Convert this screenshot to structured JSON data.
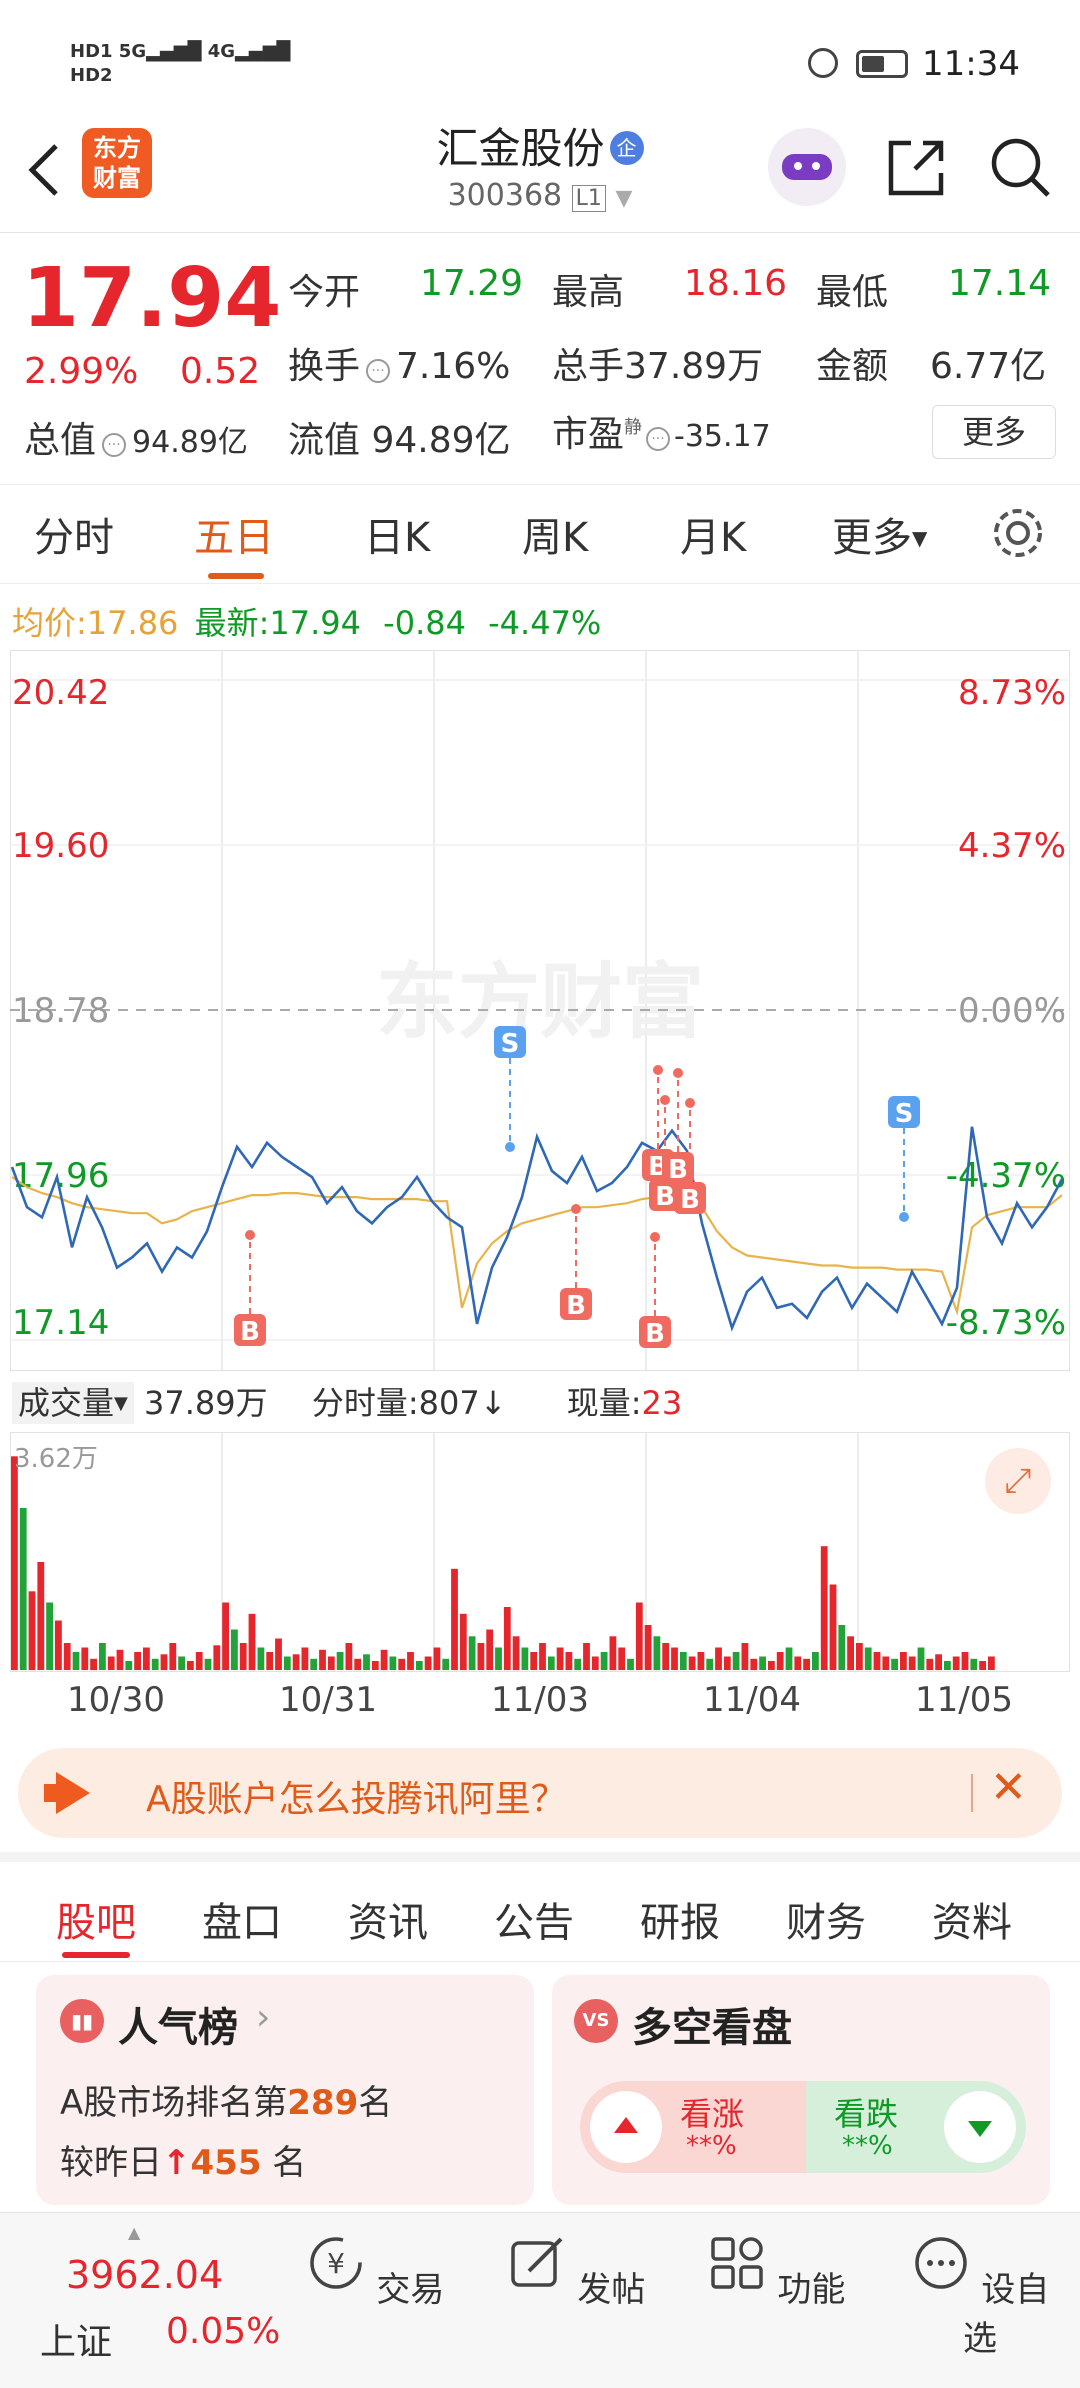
{
  "status_bar": {
    "network": "HD 1 5G 4G",
    "time": "11:34"
  },
  "header": {
    "logo_text": "东方财富",
    "stock_name": "汇金股份",
    "badge": "企",
    "stock_code": "300368",
    "level": "L1"
  },
  "quote": {
    "price": "17.94",
    "change_pct": "2.99%",
    "change_val": "0.52",
    "today_open_label": "今开",
    "today_open": "17.29",
    "high_label": "最高",
    "high": "18.16",
    "low_label": "最低",
    "low": "17.14",
    "turnover_label": "换手",
    "turnover": "7.16%",
    "volume_label": "总手",
    "volume": "37.89万",
    "amount_label": "金额",
    "amount": "6.77亿",
    "mktcap_label": "总值",
    "mktcap": "94.89亿",
    "float_label": "流值",
    "float": "94.89亿",
    "pe_label": "市盈",
    "pe_sup": "静",
    "pe": "-35.17",
    "more_button": "更多"
  },
  "period_tabs": [
    "分时",
    "五日",
    "日K",
    "周K",
    "月K",
    "更多"
  ],
  "period_active": 1,
  "chart_header": {
    "avg_label": "均价:",
    "avg_value": "17.86",
    "latest_label": "最新:",
    "latest_value": "17.94",
    "latest_change": "-0.84",
    "latest_change_pct": "-4.47%"
  },
  "chart_data": {
    "type": "line",
    "y_left": [
      "20.42",
      "19.60",
      "18.78",
      "17.96",
      "17.14"
    ],
    "y_right": [
      "8.73%",
      "4.37%",
      "0.00%",
      "-4.37%",
      "-8.73%"
    ],
    "ylim": [
      17.14,
      20.42
    ],
    "reference_price": 18.78,
    "watermark": "东方财富",
    "days": [
      "10/30",
      "10/31",
      "11/03",
      "11/04",
      "11/05"
    ],
    "series": [
      {
        "name": "price",
        "color": "#2f68b5",
        "values": [
          18.0,
          17.8,
          17.75,
          17.95,
          17.6,
          17.85,
          17.7,
          17.5,
          17.55,
          17.62,
          17.48,
          17.6,
          17.55,
          17.68,
          17.9,
          18.1,
          18.0,
          18.12,
          18.05,
          18.0,
          17.95,
          17.82,
          17.9,
          17.78,
          17.72,
          17.8,
          17.85,
          17.95,
          17.83,
          17.75,
          17.7,
          17.22,
          17.5,
          17.65,
          17.85,
          18.15,
          17.98,
          17.92,
          18.05,
          17.88,
          17.92,
          18.0,
          18.12,
          18.08,
          18.18,
          18.08,
          17.72,
          17.45,
          17.2,
          17.38,
          17.45,
          17.3,
          17.32,
          17.25,
          17.38,
          17.45,
          17.3,
          17.42,
          17.35,
          17.28,
          17.48,
          17.35,
          17.22,
          17.4,
          18.2,
          17.75,
          17.62,
          17.82,
          17.7,
          17.8,
          17.94
        ]
      },
      {
        "name": "average",
        "color": "#e8b34a",
        "values": [
          17.95,
          17.9,
          17.87,
          17.85,
          17.82,
          17.8,
          17.79,
          17.78,
          17.77,
          17.77,
          17.72,
          17.74,
          17.78,
          17.8,
          17.82,
          17.84,
          17.86,
          17.86,
          17.87,
          17.87,
          17.86,
          17.85,
          17.85,
          17.85,
          17.84,
          17.84,
          17.84,
          17.84,
          17.83,
          17.83,
          17.3,
          17.52,
          17.62,
          17.68,
          17.72,
          17.74,
          17.76,
          17.78,
          17.8,
          17.8,
          17.81,
          17.82,
          17.84,
          17.85,
          17.86,
          17.87,
          17.8,
          17.68,
          17.6,
          17.56,
          17.55,
          17.54,
          17.53,
          17.52,
          17.51,
          17.51,
          17.5,
          17.5,
          17.5,
          17.49,
          17.49,
          17.49,
          17.48,
          17.28,
          17.7,
          17.76,
          17.78,
          17.8,
          17.8,
          17.8,
          17.86
        ]
      }
    ]
  },
  "trade_markers": [
    "S",
    "B",
    "B",
    "B",
    "B",
    "B",
    "B",
    "B",
    "S"
  ],
  "volume_header": {
    "label": "成交量",
    "total": "37.89万",
    "tick_label": "分时量:807",
    "tick_arrow": "↓",
    "now_label": "现量:",
    "now_value": "23",
    "max_label": "3.62万"
  },
  "volume_bars": [
    0.95,
    0.72,
    0.35,
    0.48,
    0.3,
    0.22,
    0.12,
    0.08,
    0.1,
    0.05,
    0.12,
    0.06,
    0.09,
    0.04,
    0.08,
    0.1,
    0.05,
    0.07,
    0.12,
    0.06,
    0.04,
    0.08,
    0.05,
    0.11,
    0.3,
    0.18,
    0.12,
    0.25,
    0.1,
    0.08,
    0.14,
    0.06,
    0.07,
    0.1,
    0.05,
    0.09,
    0.06,
    0.08,
    0.12,
    0.05,
    0.07,
    0.04,
    0.09,
    0.06,
    0.05,
    0.08,
    0.04,
    0.06,
    0.1,
    0.05,
    0.45,
    0.25,
    0.15,
    0.12,
    0.18,
    0.1,
    0.28,
    0.15,
    0.1,
    0.08,
    0.12,
    0.06,
    0.1,
    0.08,
    0.05,
    0.12,
    0.06,
    0.08,
    0.15,
    0.1,
    0.05,
    0.3,
    0.2,
    0.15,
    0.12,
    0.1,
    0.08,
    0.06,
    0.08,
    0.05,
    0.1,
    0.06,
    0.08,
    0.12,
    0.05,
    0.06,
    0.04,
    0.08,
    0.1,
    0.06,
    0.05,
    0.08,
    0.55,
    0.38,
    0.2,
    0.15,
    0.12,
    0.1,
    0.08,
    0.06,
    0.05,
    0.08,
    0.06,
    0.1,
    0.05,
    0.07,
    0.04,
    0.06,
    0.08,
    0.05,
    0.04,
    0.06
  ],
  "banner": {
    "text": "A股账户怎么投腾讯阿里？"
  },
  "sub_tabs": [
    "股吧",
    "盘口",
    "资讯",
    "公告",
    "研报",
    "财务",
    "资料"
  ],
  "sub_active": 0,
  "popularity_card": {
    "title": "人气榜",
    "line1_prefix": "A股市场排名第",
    "rank": "289",
    "line1_suffix": "名",
    "line2_prefix": "较昨日",
    "delta": "455",
    "line2_suffix": "名"
  },
  "sentiment_card": {
    "title": "多空看盘",
    "bull_label": "看涨",
    "bull_value": "**%",
    "bear_label": "看跌",
    "bear_value": "**%"
  },
  "bottom_bar": {
    "index_value": "3962.04",
    "index_name": "上证",
    "index_change": "0.05%",
    "items": [
      "交易",
      "发帖",
      "功能",
      "设自选"
    ]
  }
}
